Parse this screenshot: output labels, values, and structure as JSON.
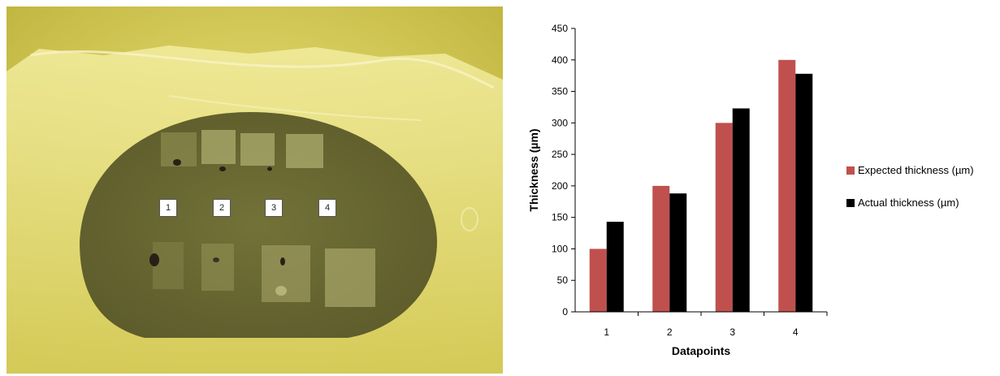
{
  "photo": {
    "labels": [
      "1",
      "2",
      "3",
      "4"
    ],
    "colors": {
      "background": "#d8cf55",
      "wafer": "#6b6a34",
      "foil": "#e6de7a"
    }
  },
  "chart_data": {
    "type": "bar",
    "categories": [
      "1",
      "2",
      "3",
      "4"
    ],
    "series": [
      {
        "name": "Expected thickness (µm)",
        "values": [
          100,
          200,
          300,
          400
        ],
        "color": "#c0504d"
      },
      {
        "name": "Actual thickness (µm)",
        "values": [
          143,
          188,
          323,
          378
        ],
        "color": "#000000"
      }
    ],
    "xlabel": "Datapoints",
    "ylabel": "Thickness (µm)",
    "ylim": [
      0,
      450
    ],
    "yticks": [
      0,
      50,
      100,
      150,
      200,
      250,
      300,
      350,
      400,
      450
    ],
    "legend": "right",
    "grid": false
  }
}
